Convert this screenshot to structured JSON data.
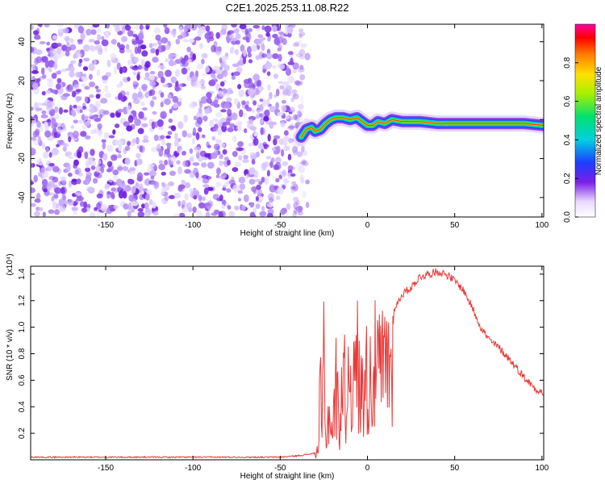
{
  "title": "C2E1.2025.253.11.08.R22",
  "chart_data": [
    {
      "type": "heatmap",
      "title": "C2E1.2025.253.11.08.R22",
      "xlabel": "Height of straight line (km)",
      "ylabel": "Frequency (Hz)",
      "xlim": [
        -193,
        101
      ],
      "ylim": [
        -50,
        49
      ],
      "xticks": [
        -150,
        -100,
        -50,
        0,
        50,
        100
      ],
      "yticks": [
        -40,
        -20,
        0,
        20,
        40
      ],
      "colorbar": {
        "label": "Normalized spectral amplitude",
        "range": [
          0,
          1
        ],
        "ticks": [
          "0.0",
          "0.2",
          "0.4",
          "0.6",
          "0.8"
        ]
      },
      "features": {
        "noise_region_x": [
          -193,
          -38
        ],
        "signal_ridge": [
          [
            -38,
            -9
          ],
          [
            -35,
            -5
          ],
          [
            -32,
            -4
          ],
          [
            -30,
            -6
          ],
          [
            -27,
            -5
          ],
          [
            -24,
            -2
          ],
          [
            -21,
            0
          ],
          [
            -18,
            1
          ],
          [
            -14,
            1
          ],
          [
            -10,
            0
          ],
          [
            -6,
            1
          ],
          [
            -3,
            -1
          ],
          [
            0,
            -3
          ],
          [
            3,
            -3
          ],
          [
            6,
            -1
          ],
          [
            10,
            -2
          ],
          [
            14,
            0
          ],
          [
            20,
            -1
          ],
          [
            30,
            -1
          ],
          [
            40,
            -2
          ],
          [
            50,
            -2
          ],
          [
            60,
            -2
          ],
          [
            70,
            -2
          ],
          [
            80,
            -2
          ],
          [
            90,
            -2
          ],
          [
            101,
            -3
          ]
        ]
      }
    },
    {
      "type": "line",
      "xlabel": "Height of straight line (km)",
      "ylabel": "SNR (10 * v/v)",
      "multiplier_label": "(x10⁴)",
      "xlim": [
        -193,
        101
      ],
      "ylim": [
        0,
        1.46
      ],
      "xticks": [
        -150,
        -100,
        -50,
        0,
        50,
        100
      ],
      "yticks": [
        "0.2",
        "0.4",
        "0.6",
        "0.8",
        "1.0",
        "1.2",
        "1.4"
      ],
      "series": [
        {
          "name": "SNR",
          "color": "#e83a3a",
          "points": [
            [
              -193,
              0.02
            ],
            [
              -150,
              0.02
            ],
            [
              -100,
              0.02
            ],
            [
              -50,
              0.02
            ],
            [
              -40,
              0.03
            ],
            [
              -30,
              0.05
            ],
            [
              -28,
              0.15
            ],
            [
              -27,
              0.9
            ],
            [
              -26,
              0.3
            ],
            [
              -25,
              1.27
            ],
            [
              -24,
              0.2
            ],
            [
              -22,
              0.6
            ],
            [
              -20,
              0.3
            ],
            [
              -18,
              0.9
            ],
            [
              -16,
              0.4
            ],
            [
              -14,
              1.1
            ],
            [
              -12,
              0.6
            ],
            [
              -10,
              1.3
            ],
            [
              -8,
              0.8
            ],
            [
              -6,
              1.25
            ],
            [
              -4,
              0.7
            ],
            [
              -2,
              1.2
            ],
            [
              0,
              0.9
            ],
            [
              4,
              1.1
            ],
            [
              8,
              1.05
            ],
            [
              12,
              1.2
            ],
            [
              16,
              1.15
            ],
            [
              20,
              1.25
            ],
            [
              25,
              1.3
            ],
            [
              30,
              1.38
            ],
            [
              35,
              1.4
            ],
            [
              40,
              1.42
            ],
            [
              45,
              1.4
            ],
            [
              50,
              1.35
            ],
            [
              55,
              1.28
            ],
            [
              60,
              1.15
            ],
            [
              65,
              1.0
            ],
            [
              70,
              0.9
            ],
            [
              75,
              0.85
            ],
            [
              80,
              0.78
            ],
            [
              85,
              0.7
            ],
            [
              90,
              0.62
            ],
            [
              95,
              0.55
            ],
            [
              101,
              0.5
            ]
          ]
        }
      ]
    }
  ]
}
